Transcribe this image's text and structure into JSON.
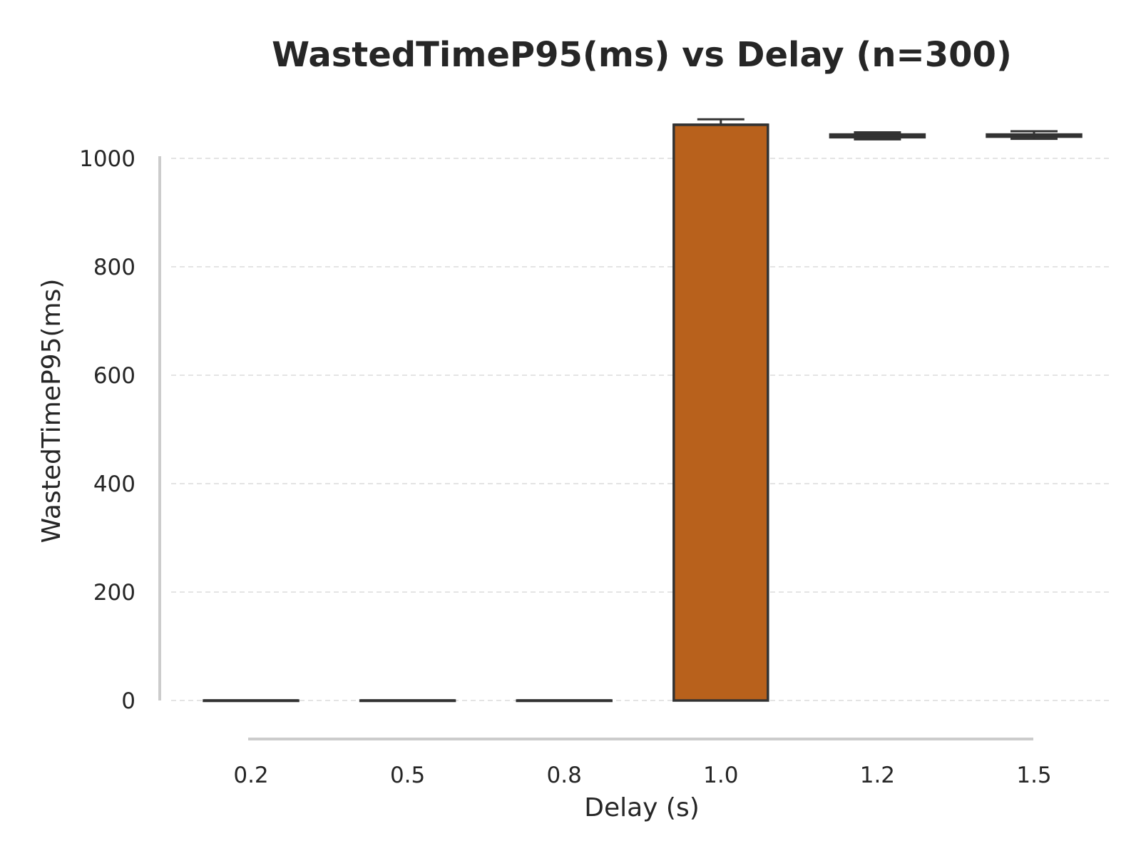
{
  "chart_data": {
    "type": "box",
    "title": "WastedTimeP95(ms) vs Delay (n=300)",
    "xlabel": "Delay (s)",
    "ylabel": "WastedTimeP95(ms)",
    "categories": [
      "0.2",
      "0.5",
      "0.8",
      "1.0",
      "1.2",
      "1.5"
    ],
    "yticks": [
      0,
      200,
      400,
      600,
      800,
      1000
    ],
    "ylim": [
      0,
      1000
    ],
    "grid": true,
    "box_color": "#b8611c",
    "boxes": [
      {
        "category": "0.2",
        "whislo": 0,
        "q1": 0,
        "median": 0,
        "q3": 0,
        "whishi": 0
      },
      {
        "category": "0.5",
        "whislo": 0,
        "q1": 0,
        "median": 0,
        "q3": 0,
        "whishi": 0
      },
      {
        "category": "0.8",
        "whislo": 0,
        "q1": 0,
        "median": 0,
        "q3": 0,
        "whishi": 0
      },
      {
        "category": "1.0",
        "whislo": 0,
        "q1": 0,
        "median": 1062,
        "q3": 1062,
        "whishi": 1072
      },
      {
        "category": "1.2",
        "whislo": 1035,
        "q1": 1039,
        "median": 1042,
        "q3": 1044,
        "whishi": 1048
      },
      {
        "category": "1.5",
        "whislo": 1036,
        "q1": 1040,
        "median": 1042,
        "q3": 1044,
        "whishi": 1050
      }
    ]
  }
}
